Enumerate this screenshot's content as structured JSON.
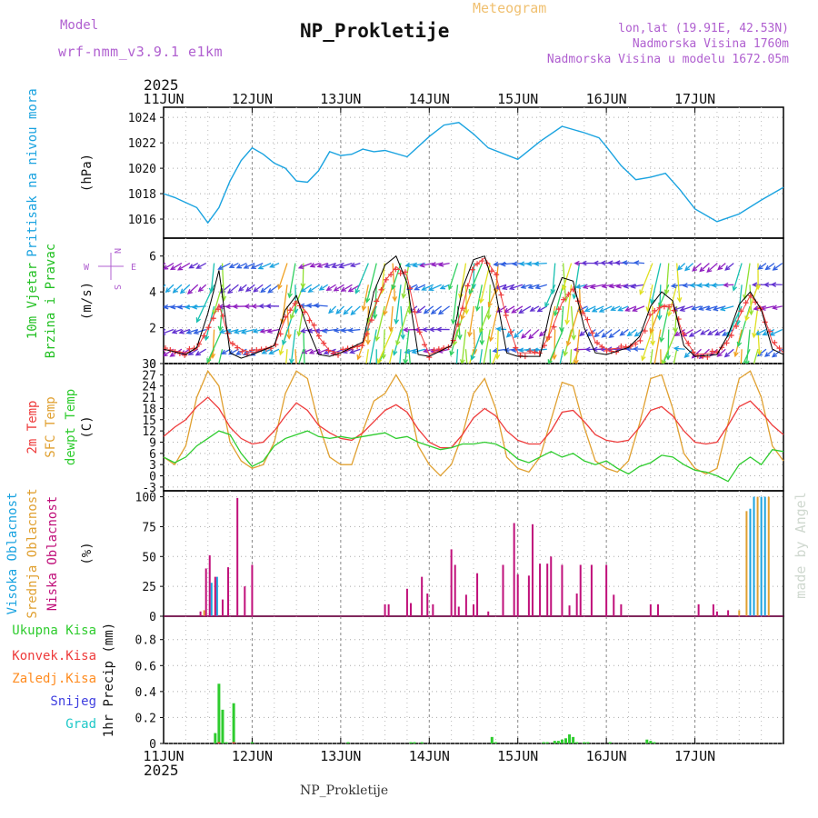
{
  "header": {
    "model_label": "Model",
    "model_name": "wrf-nmm_v3.9.1  e1km",
    "subtitle": "Meteogram",
    "title": "NP_Prokletije",
    "lonlat": "lon,lat (19.91E, 42.53N)",
    "elevation": "Nadmorska Visina 1760m",
    "model_elevation": "Nadmorska Visina u modelu 1672.05m",
    "year_top": "2025",
    "year_bottom": "2025",
    "footer": "NP_Prokletije",
    "watermark": "made by Angel"
  },
  "colors": {
    "pressure": "#1aa3e0",
    "wind_label": "#22c022",
    "t2m": "#ee3b3b",
    "tsfc": "#e0a030",
    "dew": "#2ecc2e",
    "high_cloud": "#1aa3e0",
    "mid_cloud": "#e0a030",
    "low_cloud": "#c0107a",
    "precip_total": "#2ecc2e",
    "precip_conv": "#ee3b3b",
    "precip_frozen": "#ff8c20",
    "snow": "#4040e0",
    "graupel": "#1ec8c8",
    "model_label": "#b060d0"
  },
  "x_axis": {
    "ticks": [
      "11JUN",
      "12JUN",
      "13JUN",
      "14JUN",
      "15JUN",
      "16JUN",
      "17JUN"
    ]
  },
  "compass": {
    "n": "N",
    "s": "S",
    "e": "E",
    "w": "W"
  },
  "chart_data": [
    {
      "type": "line",
      "name": "pressure",
      "ylabel_parts": [
        "Pritisak na nivou mora"
      ],
      "unit": "(hPa)",
      "ylim": [
        1014.5,
        1024.8
      ],
      "yticks": [
        1016,
        1018,
        1020,
        1022,
        1024
      ],
      "grid": true,
      "x_hours": [
        0,
        3,
        6,
        9,
        12,
        15,
        18,
        21,
        24,
        27,
        30,
        33,
        36,
        39,
        42,
        45,
        48,
        51,
        54,
        57,
        60,
        66,
        72,
        76,
        80,
        84,
        88,
        96,
        102,
        108,
        114,
        118,
        120,
        124,
        128,
        132,
        136,
        140,
        144,
        150,
        156,
        162,
        168
      ],
      "series": [
        {
          "values": [
            1018.0,
            1017.7,
            1017.3,
            1016.9,
            1015.7,
            1016.9,
            1019.0,
            1020.6,
            1021.6,
            1021.1,
            1020.4,
            1020.0,
            1019.0,
            1018.9,
            1019.8,
            1021.3,
            1021.0,
            1021.1,
            1021.5,
            1021.3,
            1021.4,
            1020.9,
            1022.5,
            1023.4,
            1023.6,
            1022.7,
            1021.6,
            1020.7,
            1022.1,
            1023.3,
            1022.8,
            1022.4,
            1021.7,
            1020.2,
            1019.1,
            1019.3,
            1019.6,
            1018.3,
            1016.8,
            1015.8,
            1016.4,
            1017.5,
            1018.5
          ]
        }
      ]
    },
    {
      "type": "line",
      "name": "wind",
      "ylabel_parts": [
        "10m Vjetar",
        "Brzina i Pravac"
      ],
      "unit": "(m/s)",
      "ylim": [
        0,
        7
      ],
      "yticks": [
        0,
        2,
        4,
        6
      ],
      "grid": true,
      "x_hours": [
        0,
        6,
        9,
        12,
        15,
        18,
        21,
        24,
        30,
        33,
        36,
        39,
        42,
        45,
        48,
        54,
        57,
        60,
        63,
        66,
        69,
        72,
        78,
        81,
        84,
        87,
        90,
        93,
        96,
        102,
        105,
        108,
        111,
        114,
        117,
        120,
        126,
        129,
        132,
        135,
        138,
        141,
        144,
        150,
        153,
        156,
        159,
        162,
        165,
        168
      ],
      "series": [
        {
          "values": [
            0.8,
            0.5,
            0.9,
            2.8,
            5.2,
            0.6,
            0.3,
            0.5,
            1.0,
            3.0,
            3.8,
            2.0,
            0.5,
            0.4,
            0.6,
            1.2,
            4.0,
            5.5,
            6.0,
            4.5,
            0.5,
            0.4,
            1.0,
            4.2,
            5.8,
            6.0,
            4.0,
            0.6,
            0.4,
            0.4,
            3.2,
            4.8,
            4.6,
            2.0,
            0.6,
            0.5,
            0.9,
            1.5,
            3.2,
            4.0,
            3.5,
            1.0,
            0.4,
            0.5,
            1.6,
            3.3,
            4.0,
            3.0,
            0.8,
            0.5
          ]
        },
        {
          "values": [
            0.8,
            0.6,
            0.8,
            2.0,
            3.3,
            1.2,
            0.8,
            0.6,
            1.0,
            2.5,
            3.5,
            2.8,
            1.5,
            0.7,
            0.6,
            1.1,
            3.0,
            4.6,
            5.4,
            4.9,
            2.0,
            0.5,
            1.0,
            3.2,
            5.4,
            5.9,
            5.0,
            2.5,
            0.6,
            0.6,
            1.8,
            3.4,
            4.2,
            2.8,
            1.2,
            0.8,
            0.9,
            1.3,
            2.7,
            3.2,
            3.3,
            1.5,
            0.5,
            0.6,
            1.3,
            2.6,
            3.8,
            3.1,
            1.2,
            0.6
          ]
        }
      ],
      "rows_m_s": [
        0.8,
        1.9,
        3.2,
        4.4,
        5.6
      ]
    },
    {
      "type": "line",
      "name": "temperature",
      "ylabel_parts": [
        "2m Temp",
        "SFC Temp",
        "dewpt Temp"
      ],
      "unit": "(C)",
      "ylim": [
        -4,
        30
      ],
      "yticks": [
        -3,
        0,
        3,
        6,
        9,
        12,
        15,
        18,
        21,
        24,
        27,
        30
      ],
      "grid": true,
      "x_hours": [
        0,
        3,
        6,
        9,
        12,
        15,
        18,
        21,
        24,
        27,
        30,
        33,
        36,
        39,
        42,
        45,
        48,
        51,
        54,
        57,
        60,
        63,
        66,
        69,
        72,
        75,
        78,
        81,
        84,
        87,
        90,
        93,
        96,
        99,
        102,
        105,
        108,
        111,
        114,
        117,
        120,
        123,
        126,
        129,
        132,
        135,
        138,
        141,
        144,
        147,
        150,
        153,
        156,
        159,
        162,
        165,
        168
      ],
      "series": [
        {
          "name": "2m Temp",
          "values": [
            10.5,
            13.0,
            15.0,
            18.5,
            21.0,
            18.0,
            13.0,
            10.0,
            8.5,
            9.0,
            12.0,
            16.0,
            19.5,
            17.5,
            13.5,
            11.5,
            10.0,
            9.5,
            11.5,
            14.5,
            17.5,
            19.0,
            17.0,
            12.5,
            9.0,
            7.5,
            7.5,
            11.0,
            15.5,
            18.0,
            16.0,
            12.0,
            9.5,
            8.5,
            8.5,
            12.0,
            17.0,
            17.5,
            14.5,
            11.0,
            9.5,
            9.0,
            9.5,
            13.0,
            17.5,
            18.5,
            16.0,
            12.0,
            9.0,
            8.5,
            9.0,
            13.5,
            18.5,
            20.0,
            17.0,
            13.5,
            11.0
          ]
        },
        {
          "name": "SFC Temp",
          "values": [
            5.0,
            3.0,
            8.0,
            21.0,
            28.0,
            24.0,
            9.0,
            4.0,
            2.0,
            3.0,
            9.0,
            22.0,
            28.0,
            26.0,
            14.0,
            5.0,
            3.0,
            3.0,
            12.0,
            20.0,
            22.0,
            27.0,
            22.0,
            8.0,
            3.0,
            0.0,
            3.0,
            11.0,
            22.0,
            26.0,
            18.0,
            5.0,
            2.0,
            1.0,
            5.0,
            15.0,
            25.0,
            24.0,
            13.0,
            4.0,
            2.0,
            1.0,
            4.0,
            14.0,
            26.0,
            27.0,
            18.0,
            6.0,
            2.0,
            0.5,
            2.0,
            14.0,
            26.0,
            28.0,
            21.0,
            8.0,
            4.0
          ]
        },
        {
          "name": "dewpt Temp",
          "values": [
            5.0,
            3.5,
            5.0,
            8.0,
            10.0,
            12.0,
            11.0,
            6.0,
            2.5,
            4.0,
            8.0,
            10.0,
            11.0,
            12.0,
            10.5,
            10.0,
            10.5,
            10.0,
            10.5,
            11.0,
            11.5,
            10.0,
            10.5,
            9.0,
            8.0,
            7.0,
            7.5,
            8.5,
            8.5,
            9.0,
            8.5,
            7.0,
            4.5,
            3.5,
            5.0,
            6.5,
            5.0,
            6.0,
            4.0,
            3.0,
            4.0,
            2.0,
            0.5,
            2.5,
            3.5,
            5.5,
            5.0,
            3.0,
            1.5,
            1.0,
            0.0,
            -1.5,
            3.0,
            5.0,
            3.0,
            7.0,
            6.5
          ]
        }
      ]
    },
    {
      "type": "bar",
      "name": "cloud",
      "ylabel_parts": [
        "Visoka Oblacnost",
        "Srednja Oblacnost",
        "Niska Oblacnost"
      ],
      "unit": "(%)",
      "ylim": [
        0,
        105
      ],
      "yticks": [
        0,
        25,
        50,
        75,
        100
      ],
      "grid": true,
      "series": [
        {
          "name": "Visoka Oblacnost",
          "x_hours": [
            13,
            14.5,
            159,
            160,
            162,
            163
          ],
          "values": [
            28,
            33,
            90,
            100,
            100,
            100
          ]
        },
        {
          "name": "Srednja Oblacnost",
          "x_hours": [
            11,
            14,
            156,
            158,
            161,
            164
          ],
          "values": [
            5,
            30,
            5,
            88,
            100,
            100
          ]
        },
        {
          "name": "Niska Oblacnost",
          "x_hours": [
            10,
            11.5,
            12.5,
            14,
            16,
            17.5,
            20,
            22,
            24,
            60,
            61,
            66,
            67,
            70,
            71.5,
            73,
            78,
            79,
            80,
            82,
            84,
            85,
            88,
            92,
            95,
            96,
            99,
            100,
            102,
            104,
            105,
            108,
            110,
            112,
            113,
            116,
            120,
            122,
            124,
            132,
            134,
            145,
            149,
            150,
            153
          ],
          "values": [
            4,
            40,
            51,
            33,
            14,
            41,
            99,
            25,
            43,
            10,
            10,
            23,
            11,
            33,
            19,
            10,
            56,
            43,
            8,
            18,
            10,
            36,
            4,
            43,
            78,
            35,
            34,
            77,
            44,
            44,
            50,
            43,
            9,
            19,
            43,
            43,
            43,
            18,
            10,
            10,
            10,
            10,
            10,
            4,
            5
          ]
        }
      ]
    },
    {
      "type": "bar",
      "name": "precip",
      "ylabel_parts": [
        "Ukupna Kisa",
        "Konvek.Kisa",
        "Zaledj.Kisa",
        "Snijeg",
        "Grad"
      ],
      "unit": "1hr Precip (mm)",
      "ylim": [
        0,
        0.98
      ],
      "yticks": [
        0,
        0.2,
        0.4,
        0.6,
        0.8
      ],
      "grid": true,
      "series": [
        {
          "name": "Ukupna Kisa",
          "x_hours": [
            14,
            15,
            16,
            17,
            19,
            24,
            50,
            67,
            68,
            70,
            89,
            90,
            103,
            104,
            106,
            107,
            108,
            109,
            110,
            111,
            112,
            114,
            115,
            121,
            131,
            132,
            133
          ],
          "values": [
            0.08,
            0.46,
            0.26,
            0.01,
            0.31,
            0.01,
            0.01,
            0.01,
            0.01,
            0.01,
            0.05,
            0.01,
            0.01,
            0.01,
            0.02,
            0.02,
            0.03,
            0.04,
            0.07,
            0.05,
            0.01,
            0.01,
            0.01,
            0.01,
            0.03,
            0.02,
            0.01
          ]
        },
        {
          "name": "Konvek.Kisa",
          "x_hours": [
            15,
            19
          ],
          "values": [
            0.01,
            0.01
          ]
        }
      ]
    }
  ]
}
